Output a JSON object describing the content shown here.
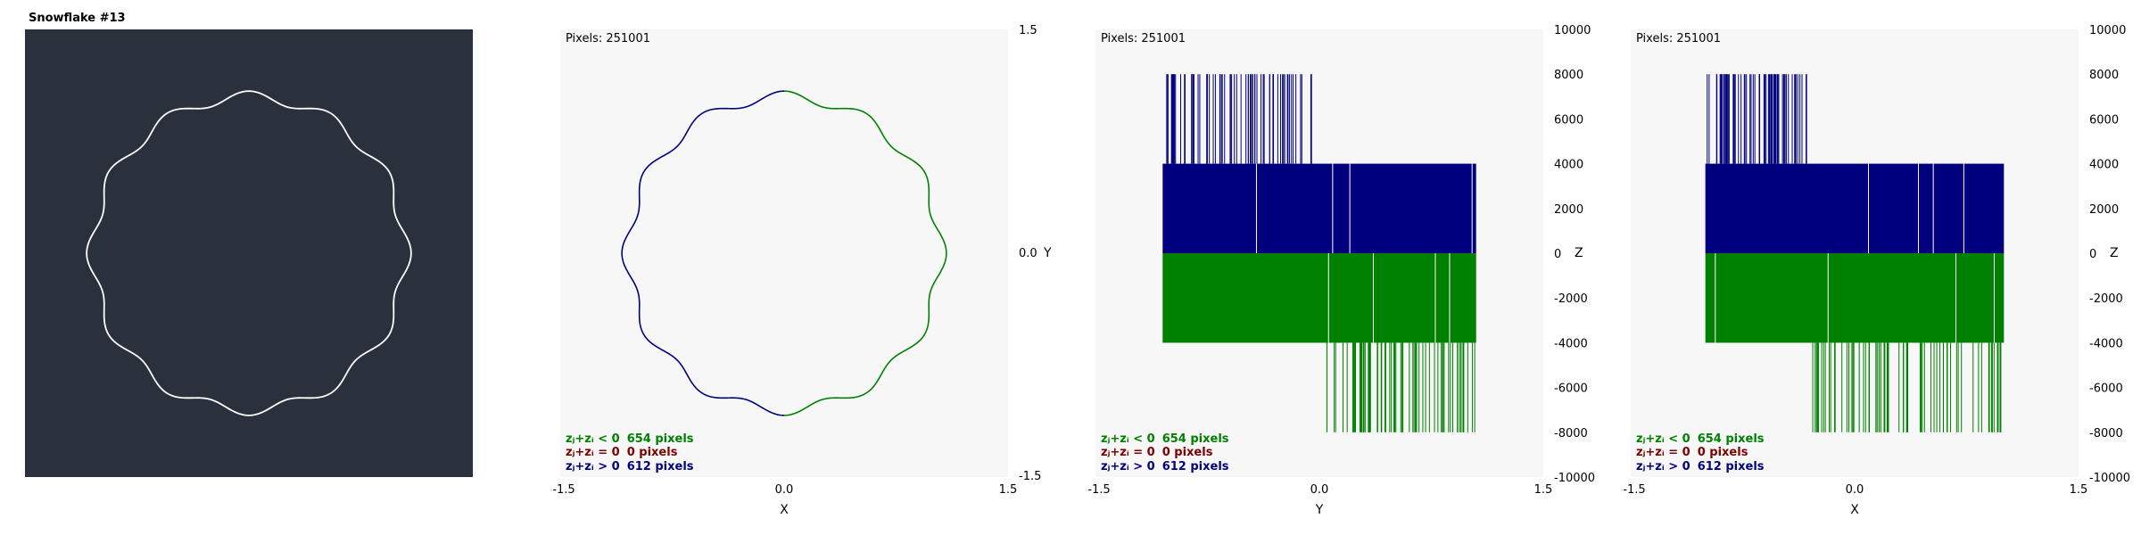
{
  "colors": {
    "dark_bg": "#2a303c",
    "plot_bg": "#f7f7f7",
    "neg": "#008000",
    "zero": "#800000",
    "pos": "#00007f",
    "curve": "#ffffff"
  },
  "panel1": {
    "title": "Snowflake #13"
  },
  "panels": [
    {
      "pixels_label": "Pixels: 251001",
      "xlabel": "X",
      "ylabel": "Y",
      "xticks": [
        "-1.5",
        "0.0",
        "1.5"
      ],
      "yticks": [
        "1.5",
        "0.0",
        "-1.5"
      ]
    },
    {
      "pixels_label": "Pixels: 251001",
      "xlabel": "Y",
      "ylabel": "Z",
      "xticks": [
        "-1.5",
        "0.0",
        "1.5"
      ],
      "yticks": [
        "10000",
        "8000",
        "6000",
        "4000",
        "2000",
        "0",
        "-2000",
        "-4000",
        "-6000",
        "-8000",
        "-10000"
      ]
    },
    {
      "pixels_label": "Pixels: 251001",
      "xlabel": "X",
      "ylabel": "Z",
      "xticks": [
        "-1.5",
        "0.0",
        "1.5"
      ],
      "yticks": [
        "10000",
        "8000",
        "6000",
        "4000",
        "2000",
        "0",
        "-2000",
        "-4000",
        "-6000",
        "-8000",
        "-10000"
      ]
    }
  ],
  "legend": [
    {
      "label": "zⱼ+zᵢ < 0",
      "value": "654 pixels",
      "color": "#008000"
    },
    {
      "label": "zⱼ+zᵢ = 0",
      "value": "0 pixels",
      "color": "#800000"
    },
    {
      "label": "zⱼ+zᵢ > 0",
      "value": "612 pixels",
      "color": "#00007f"
    }
  ],
  "chart_data": [
    {
      "type": "line",
      "title": "Snowflake #13",
      "xlim": [
        -1.5,
        1.5
      ],
      "ylim": [
        -1.5,
        1.5
      ],
      "shape": {
        "base_radius": 1.0,
        "lobe_amplitude": 0.035,
        "lobes": 12
      }
    },
    {
      "type": "scatter",
      "xlabel": "X",
      "ylabel": "Y",
      "xlim": [
        -1.5,
        1.5
      ],
      "ylim": [
        -1.5,
        1.5
      ],
      "pixels_total": 251001,
      "counts": {
        "negative": 654,
        "zero": 0,
        "positive": 612
      }
    },
    {
      "type": "bar",
      "xlabel": "Y",
      "ylabel": "Z",
      "xlim": [
        -1.5,
        1.5
      ],
      "ylim": [
        -10000,
        10000
      ],
      "blocks": [
        {
          "sign": "positive",
          "x": [
            -1.05,
            1.05
          ],
          "z": [
            0,
            4000
          ]
        },
        {
          "sign": "negative",
          "x": [
            -1.05,
            1.05
          ],
          "z": [
            -4000,
            0
          ]
        }
      ],
      "spikes_positive": {
        "x": [
          -1.05,
          -0.05
        ],
        "z": [
          4000,
          8000
        ]
      },
      "spikes_negative": {
        "x": [
          0.05,
          1.05
        ],
        "z": [
          -8000,
          -4000
        ]
      }
    },
    {
      "type": "bar",
      "xlabel": "X",
      "ylabel": "Z",
      "xlim": [
        -1.5,
        1.5
      ],
      "ylim": [
        -10000,
        10000
      ],
      "blocks": [
        {
          "sign": "positive",
          "x": [
            -1.0,
            1.0
          ],
          "z": [
            0,
            4000
          ]
        },
        {
          "sign": "negative",
          "x": [
            -1.0,
            1.0
          ],
          "z": [
            -4000,
            0
          ]
        }
      ],
      "spikes_positive": {
        "x": [
          -1.0,
          -0.3
        ],
        "z": [
          4000,
          8000
        ]
      },
      "spikes_negative": {
        "x": [
          -0.3,
          1.0
        ],
        "z": [
          -8000,
          -4000
        ]
      }
    }
  ]
}
